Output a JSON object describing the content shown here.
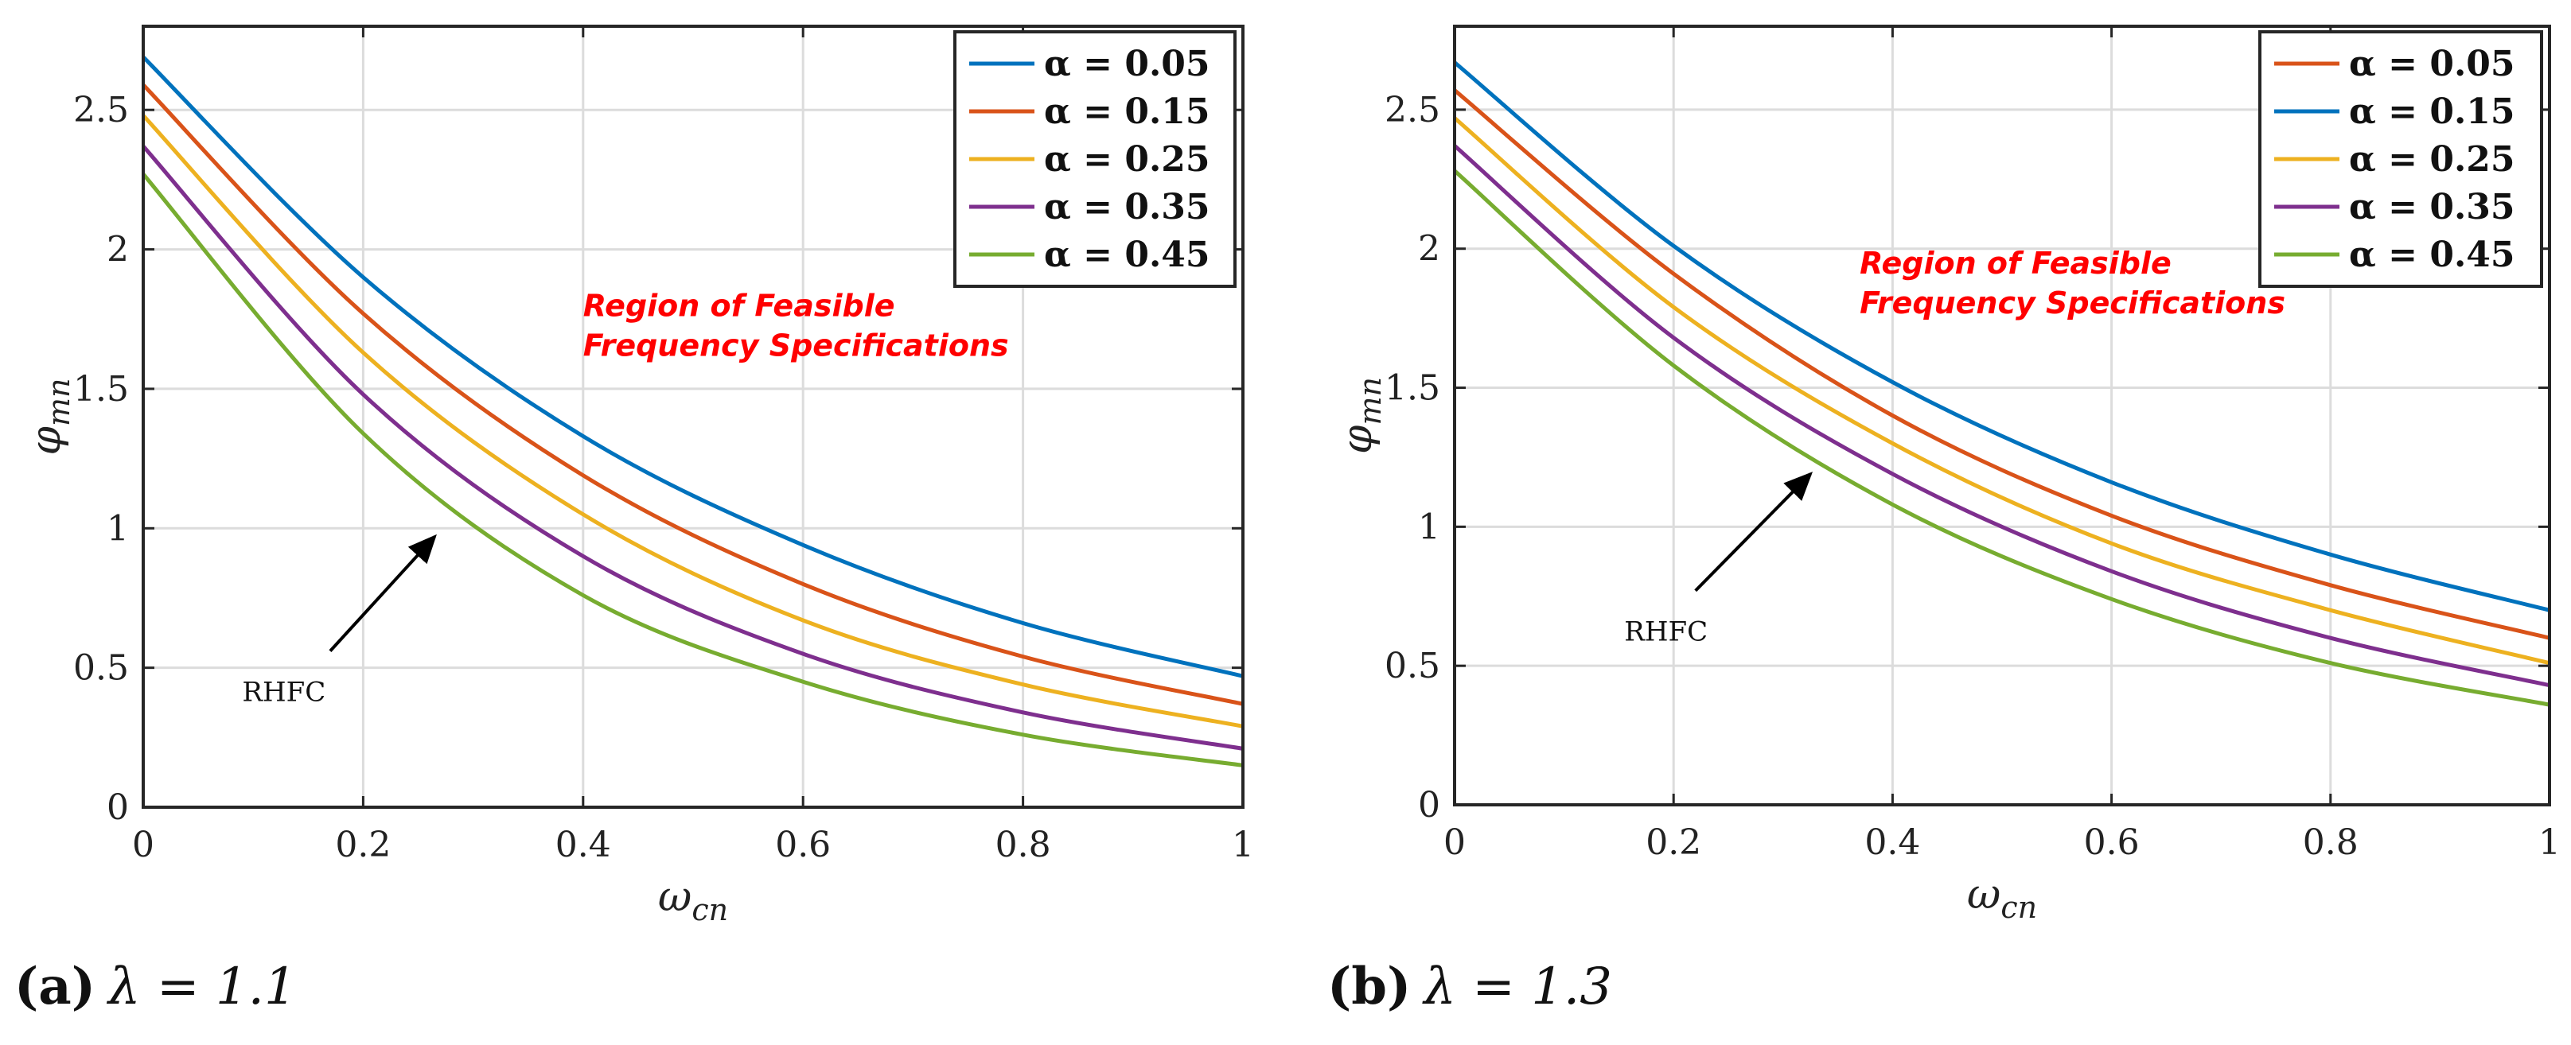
{
  "chart_data": [
    {
      "type": "line",
      "caption_letter": "(a)",
      "caption_text": "λ = 1.1",
      "title": "",
      "xlabel": "ω",
      "xlabel_sub": "cn",
      "ylabel": "φ",
      "ylabel_sub": "mn",
      "xlim": [
        0,
        1
      ],
      "ylim": [
        0,
        2.8
      ],
      "x_ticks": [
        "0",
        "0.2",
        "0.4",
        "0.6",
        "0.8",
        "1"
      ],
      "x_tick_values": [
        0,
        0.2,
        0.4,
        0.6,
        0.8,
        1
      ],
      "y_ticks": [
        "0",
        "0.5",
        "1",
        "1.5",
        "2",
        "2.5"
      ],
      "y_tick_values": [
        0,
        0.5,
        1,
        1.5,
        2,
        2.5
      ],
      "grid": true,
      "legend_position": "top-right",
      "x": [
        0,
        0.2,
        0.4,
        0.6,
        0.8,
        1.0
      ],
      "series": [
        {
          "name": "α = 0.05",
          "color": "#0072bd",
          "values": [
            2.69,
            1.9,
            1.33,
            0.94,
            0.66,
            0.47
          ]
        },
        {
          "name": "α = 0.15",
          "color": "#d95319",
          "values": [
            2.59,
            1.77,
            1.19,
            0.8,
            0.54,
            0.37
          ]
        },
        {
          "name": "α = 0.25",
          "color": "#edb120",
          "values": [
            2.48,
            1.63,
            1.05,
            0.67,
            0.44,
            0.29
          ]
        },
        {
          "name": "α = 0.35",
          "color": "#7e2f8e",
          "values": [
            2.37,
            1.48,
            0.9,
            0.55,
            0.34,
            0.21
          ]
        },
        {
          "name": "α = 0.45",
          "color": "#77ac30",
          "values": [
            2.27,
            1.34,
            0.76,
            0.45,
            0.26,
            0.15
          ]
        }
      ],
      "annotations": {
        "region_line1": "Region of Feasible",
        "region_line2": "Frequency Specifications",
        "region_at": [
          0.4,
          1.76
        ],
        "rhfc_label": "RHFC",
        "rhfc_text_at": [
          0.09,
          0.38
        ],
        "arrow_from": [
          0.17,
          0.56
        ],
        "arrow_to": [
          0.265,
          0.97
        ]
      }
    },
    {
      "type": "line",
      "caption_letter": "(b)",
      "caption_text": "λ = 1.3",
      "title": "",
      "xlabel": "ω",
      "xlabel_sub": "cn",
      "ylabel": "φ",
      "ylabel_sub": "mn",
      "xlim": [
        0,
        1
      ],
      "ylim": [
        0,
        2.8
      ],
      "x_ticks": [
        "0",
        "0.2",
        "0.4",
        "0.6",
        "0.8",
        "1"
      ],
      "x_tick_values": [
        0,
        0.2,
        0.4,
        0.6,
        0.8,
        1
      ],
      "y_ticks": [
        "0",
        "0.5",
        "1",
        "1.5",
        "2",
        "2.5"
      ],
      "y_tick_values": [
        0,
        0.5,
        1,
        1.5,
        2,
        2.5
      ],
      "grid": true,
      "legend_position": "top-right",
      "x": [
        0,
        0.2,
        0.4,
        0.6,
        0.8,
        1.0
      ],
      "series": [
        {
          "name": "α = 0.05",
          "color": "#d95319",
          "values": [
            2.57,
            1.91,
            1.4,
            1.04,
            0.79,
            0.6
          ]
        },
        {
          "name": "α = 0.15",
          "color": "#0072bd",
          "values": [
            2.67,
            2.01,
            1.52,
            1.16,
            0.9,
            0.7
          ]
        },
        {
          "name": "α = 0.25",
          "color": "#edb120",
          "values": [
            2.47,
            1.79,
            1.3,
            0.94,
            0.7,
            0.51
          ]
        },
        {
          "name": "α = 0.35",
          "color": "#7e2f8e",
          "values": [
            2.37,
            1.68,
            1.19,
            0.84,
            0.6,
            0.43
          ]
        },
        {
          "name": "α = 0.45",
          "color": "#77ac30",
          "values": [
            2.28,
            1.58,
            1.08,
            0.74,
            0.51,
            0.36
          ]
        }
      ],
      "annotations": {
        "region_line1": "Region of Feasible",
        "region_line2": "Frequency Specifications",
        "region_at": [
          0.37,
          1.91
        ],
        "rhfc_label": "RHFC",
        "rhfc_text_at": [
          0.155,
          0.59
        ],
        "arrow_from": [
          0.22,
          0.77
        ],
        "arrow_to": [
          0.325,
          1.19
        ]
      }
    }
  ]
}
